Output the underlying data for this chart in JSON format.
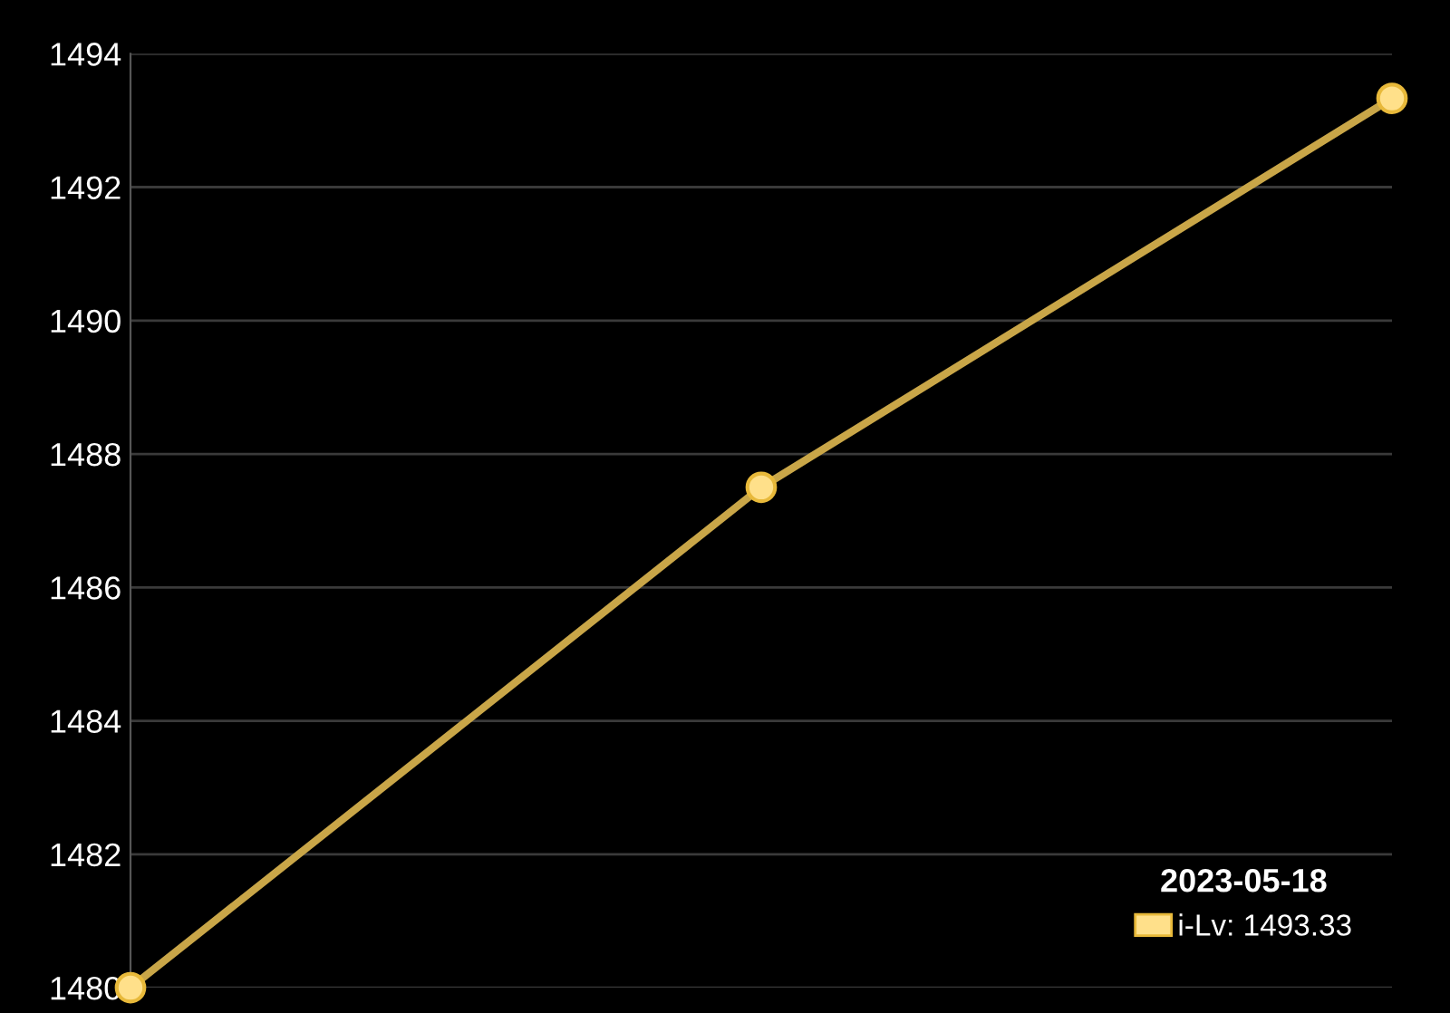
{
  "chart_data": {
    "type": "line",
    "categories": [
      null,
      null,
      null
    ],
    "series": [
      {
        "name": "i-Lv: 1493.33",
        "color": "#c9a648",
        "values": [
          1480,
          1487.5,
          1493.33
        ]
      }
    ],
    "ylim": [
      1480,
      1494
    ],
    "yticks": [
      1480,
      1482,
      1484,
      1486,
      1488,
      1490,
      1492,
      1494
    ],
    "grid": "y",
    "legend": "bottom right",
    "legend_title": "2023-05-18",
    "tick_labels": "y",
    "marker": "circle",
    "line_style": "solid"
  }
}
